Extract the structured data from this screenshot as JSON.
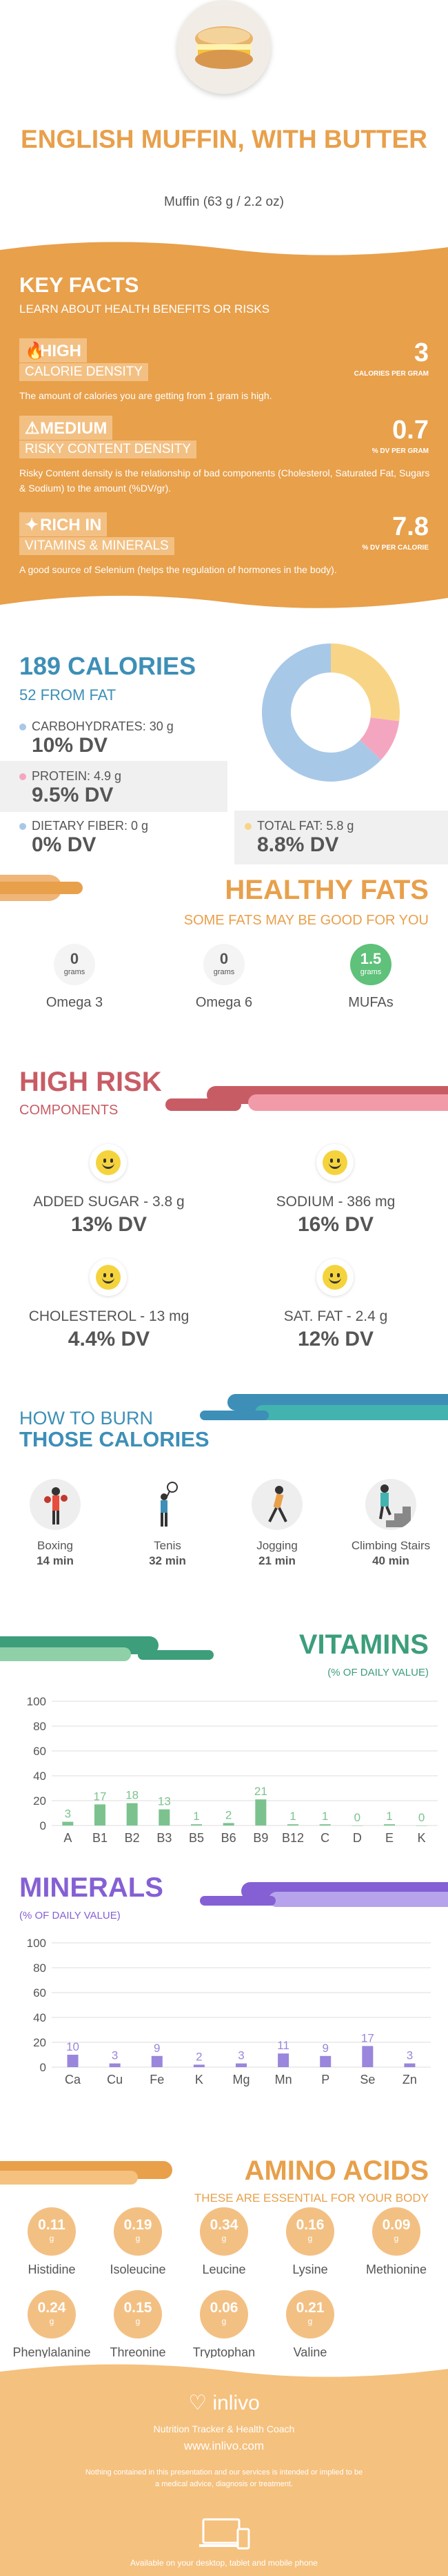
{
  "header": {
    "title": "ENGLISH MUFFIN, WITH BUTTER",
    "serving": "Muffin (63 g / 2.2 oz)"
  },
  "key_facts": {
    "title": "KEY FACTS",
    "subtitle": "LEARN ABOUT HEALTH BENEFITS OR RISKS",
    "facts": [
      {
        "level": "HIGH",
        "label": "CALORIE DENSITY",
        "value": "3",
        "unit": "CALORIES PER GRAM",
        "desc": "The amount of calories you are getting from 1 gram is high."
      },
      {
        "level": "MEDIUM",
        "label": "RISKY CONTENT DENSITY",
        "value": "0.7",
        "unit": "% DV PER GRAM",
        "desc": "Risky Content density is the relationship of bad components (Cholesterol, Saturated Fat, Sugars & Sodium) to the amount (%DV/gr)."
      },
      {
        "level": "RICH  IN",
        "label": "VITAMINS & MINERALS",
        "value": "7.8",
        "unit": "% DV PER CALORIE",
        "desc": "A good source of Selenium (helps the regulation of hormones in the body)."
      }
    ]
  },
  "calories": {
    "total": "189 CALORIES",
    "fat": "52 FROM FAT",
    "carbs": {
      "label": "CARBOHYDRATES: 30 g",
      "dv": "10% DV",
      "color": "#a8c8e8"
    },
    "protein": {
      "label": "PROTEIN: 4.9 g",
      "dv": "9.5% DV",
      "color": "#f4a6c0"
    },
    "fiber": {
      "label": "DIETARY FIBER: 0 g",
      "dv": "0% DV",
      "color": "#a8c8e8"
    },
    "total_fat": {
      "label": "TOTAL FAT: 5.8 g",
      "dv": "8.8% DV",
      "color": "#f8d586"
    }
  },
  "chart_data": [
    {
      "type": "pie",
      "categories": [
        "Carbohydrates",
        "Protein",
        "Total fat"
      ],
      "values": [
        63,
        10,
        27
      ],
      "colors": [
        "#a8c8e8",
        "#f4a6c0",
        "#f8d586"
      ]
    },
    {
      "type": "bar",
      "title": "VITAMINS",
      "subtitle": "(% OF DAILY VALUE)",
      "categories": [
        "A",
        "B1",
        "B2",
        "B3",
        "B5",
        "B6",
        "B9",
        "B12",
        "C",
        "D",
        "E",
        "K"
      ],
      "values": [
        3,
        17,
        18,
        13,
        1,
        2,
        21,
        1,
        1,
        0,
        1,
        0
      ],
      "ylim": [
        0,
        100
      ],
      "yticks": [
        0,
        20,
        40,
        60,
        80,
        100
      ],
      "color": "#7cc28e"
    },
    {
      "type": "bar",
      "title": "MINERALS",
      "subtitle": "(% OF DAILY VALUE)",
      "categories": [
        "Ca",
        "Cu",
        "Fe",
        "K",
        "Mg",
        "Mn",
        "P",
        "Se",
        "Zn"
      ],
      "values": [
        10,
        3,
        9,
        2,
        3,
        11,
        9,
        17,
        3
      ],
      "ylim": [
        0,
        100
      ],
      "yticks": [
        0,
        20,
        40,
        60,
        80,
        100
      ],
      "color": "#9a86dc"
    }
  ],
  "healthy_fats": {
    "title": "HEALTHY FATS",
    "subtitle": "SOME FATS MAY BE GOOD FOR YOU",
    "items": [
      {
        "name": "Omega 3",
        "value": "0",
        "unit": "grams"
      },
      {
        "name": "Omega 6",
        "value": "0",
        "unit": "grams"
      },
      {
        "name": "MUFAs",
        "value": "1.5",
        "unit": "grams"
      }
    ]
  },
  "high_risk": {
    "title": "HIGH RISK",
    "subtitle": "COMPONENTS",
    "items": [
      {
        "label": "ADDED SUGAR - 3.8 g",
        "dv": "13% DV"
      },
      {
        "label": "SODIUM - 386 mg",
        "dv": "16% DV"
      },
      {
        "label": "CHOLESTEROL - 13 mg",
        "dv": "4.4% DV"
      },
      {
        "label": "SAT. FAT - 2.4 g",
        "dv": "12% DV"
      }
    ]
  },
  "burn": {
    "title_line1": "HOW TO BURN",
    "title_line2": "THOSE CALORIES",
    "activities": [
      {
        "name": "Boxing",
        "minutes": "14 min",
        "icon": "boxing-icon"
      },
      {
        "name": "Tenis",
        "minutes": "32 min",
        "icon": "tennis-icon"
      },
      {
        "name": "Jogging",
        "minutes": "21 min",
        "icon": "jogging-icon"
      },
      {
        "name": "Climbing Stairs",
        "minutes": "40 min",
        "icon": "stairs-icon"
      }
    ]
  },
  "amino": {
    "title": "AMINO ACIDS",
    "subtitle": "THESE ARE ESSENTIAL FOR YOUR BODY",
    "unit": "g",
    "items": [
      {
        "name": "Histidine",
        "value": "0.11"
      },
      {
        "name": "Isoleucine",
        "value": "0.19"
      },
      {
        "name": "Leucine",
        "value": "0.34"
      },
      {
        "name": "Lysine",
        "value": "0.16"
      },
      {
        "name": "Methionine",
        "value": "0.09"
      },
      {
        "name": "Phenylalanine",
        "value": "0.24"
      },
      {
        "name": "Threonine",
        "value": "0.15"
      },
      {
        "name": "Tryptophan",
        "value": "0.06"
      },
      {
        "name": "Valine",
        "value": "0.21"
      }
    ]
  },
  "footer": {
    "brand": "inlivo",
    "tagline": "Nutrition Tracker & Health Coach",
    "url": "www.inlivo.com",
    "disclaimer": "Nothing contained in this presentation and our services is intended or implied to be a medical advice, diagnosis or treatment.",
    "available": "Available on your desktop, tablet and mobile phone"
  },
  "colors": {
    "orange": "#e8a04b",
    "blue": "#3d8fb7",
    "red": "#c85c65",
    "green": "#3c9e7a",
    "purple": "#8560d4"
  }
}
